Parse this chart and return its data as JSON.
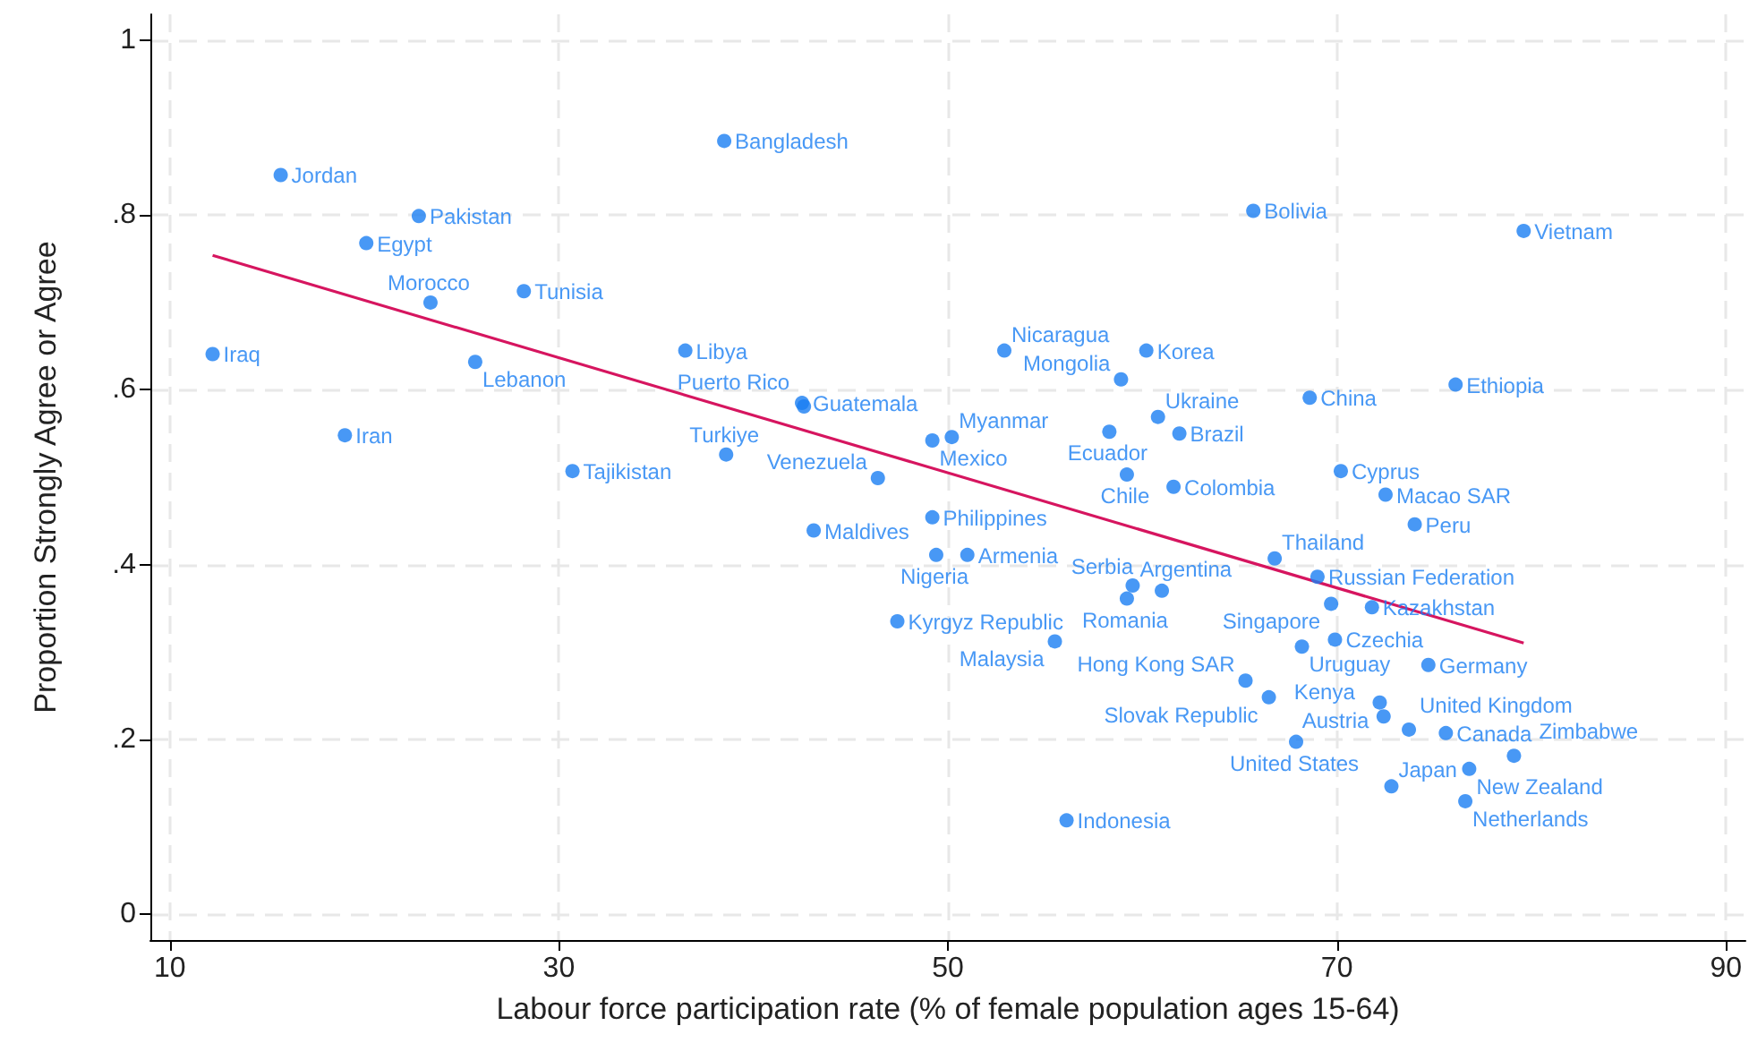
{
  "chart_data": {
    "type": "scatter",
    "xlabel": "Labour force participation rate (% of female population ages 15-64)",
    "ylabel": "Proportion Strongly Agree or Agree",
    "xlim": [
      9,
      91
    ],
    "xticks": [
      10,
      30,
      50,
      70,
      90
    ],
    "ylim": [
      -0.03,
      1.03
    ],
    "yticks": [
      {
        "value": 0,
        "label": "0"
      },
      {
        "value": 0.2,
        "label": ".2"
      },
      {
        "value": 0.4,
        "label": ".4"
      },
      {
        "value": 0.6,
        "label": ".6"
      },
      {
        "value": 0.8,
        "label": ".8"
      },
      {
        "value": 1,
        "label": "1"
      }
    ],
    "grid": true,
    "marker": "circle",
    "series": [
      {
        "color": "#1a7ef2",
        "x": [
          12.2,
          15.7,
          19.0,
          20.1,
          22.8,
          23.4,
          25.7,
          28.2,
          30.7,
          36.5,
          38.5,
          38.6,
          42.5,
          42.6,
          43.1,
          46.4,
          47.4,
          49.2,
          49.2,
          50.2,
          49.4,
          51.0,
          52.9,
          55.5,
          56.1,
          58.3,
          58.9,
          59.2,
          59.2,
          59.5,
          61.0,
          60.2,
          60.8,
          61.6,
          61.9,
          65.7,
          65.3,
          66.5,
          66.8,
          67.9,
          68.2,
          68.6,
          69.0,
          69.7,
          69.9,
          70.2,
          71.8,
          72.2,
          72.4,
          72.5,
          72.8,
          74.7,
          73.7,
          75.6,
          74.0,
          76.1,
          76.8,
          76.6,
          79.1,
          79.6
        ],
        "values": [
          0.641,
          0.846,
          0.548,
          0.768,
          0.799,
          0.7,
          0.632,
          0.713,
          0.507,
          0.645,
          0.885,
          0.526,
          0.585,
          0.581,
          0.439,
          0.499,
          0.335,
          0.454,
          0.542,
          0.546,
          0.411,
          0.411,
          0.645,
          0.312,
          0.107,
          0.552,
          0.612,
          0.503,
          0.361,
          0.376,
          0.37,
          0.645,
          0.569,
          0.489,
          0.55,
          0.805,
          0.267,
          0.248,
          0.407,
          0.197,
          0.306,
          0.591,
          0.386,
          0.355,
          0.314,
          0.507,
          0.351,
          0.242,
          0.226,
          0.48,
          0.146,
          0.285,
          0.211,
          0.207,
          0.446,
          0.606,
          0.166,
          0.129,
          0.181,
          0.782
        ],
        "value_labels": [
          "Iraq",
          "Jordan",
          "Iran",
          "Egypt",
          "Pakistan",
          "Morocco",
          "Lebanon",
          "Tunisia",
          "Tajikistan",
          "Libya",
          "Bangladesh",
          "Turkiye",
          "Guatemala",
          "Puerto Rico",
          "Maldives",
          "Venezuela",
          "Kyrgyz Republic",
          "Philippines",
          "Mexico",
          "Myanmar",
          "Nigeria",
          "Armenia",
          "Nicaragua",
          "Malaysia",
          "Indonesia",
          "Ecuador",
          "Mongolia",
          "Chile",
          "Romania",
          "Argentina",
          "Serbia",
          "Korea",
          "Ukraine",
          "Colombia",
          "Brazil",
          "Bolivia",
          "Hong Kong SAR",
          "Slovak Republic",
          "Thailand",
          "United States",
          "Uruguay",
          "China",
          "Russian Federation",
          "Singapore",
          "Czechia",
          "Cyprus",
          "Kazakhstan",
          "Austria",
          "Kenya",
          "Macao SAR",
          "Japan",
          "Germany",
          "United Kingdom",
          "Canada",
          "Peru",
          "Ethiopia",
          "New Zealand",
          "Netherlands",
          "Zimbabwe",
          "Vietnam"
        ]
      },
      {
        "type": "line",
        "color": "#d6155f",
        "marker": "none",
        "line_style": "solid",
        "x": [
          12.2,
          79.6
        ],
        "values": [
          0.754,
          0.31
        ]
      }
    ]
  }
}
